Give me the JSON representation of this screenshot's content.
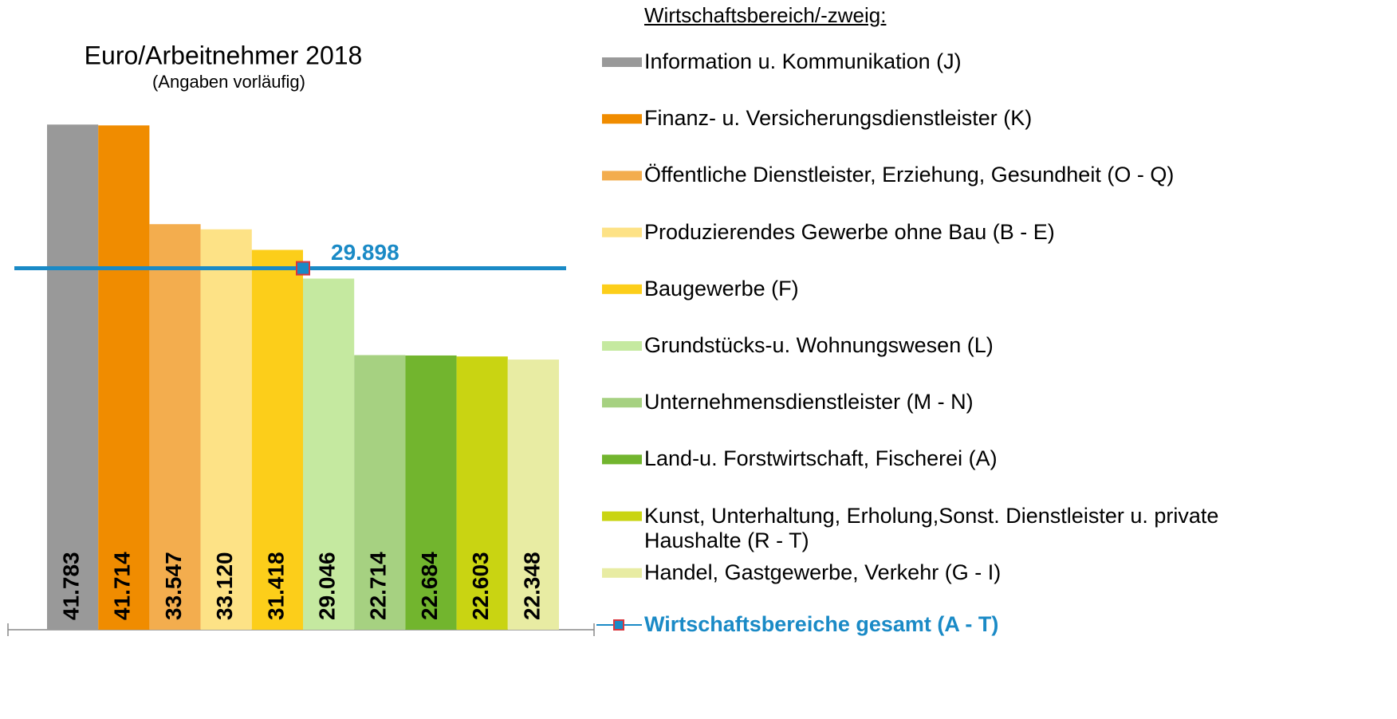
{
  "chart_data": {
    "type": "bar",
    "title": "Euro/Arbeitnehmer 2018",
    "subtitle": "(Angaben vorläufig)",
    "legend_title": "Wirtschaftsbereich/-zweig:",
    "legend_position": "right",
    "ylim": [
      0,
      42000
    ],
    "series": [
      {
        "name": "Information u. Kommunikation (J)",
        "color": "#999999",
        "values": [
          41783
        ],
        "value_labels": [
          "41.783"
        ]
      },
      {
        "name": "Finanz- u. Versicherungsdienstleister (K)",
        "color": "#f08c00",
        "values": [
          41714
        ],
        "value_labels": [
          "41.714"
        ]
      },
      {
        "name": "Öffentliche Dienstleister, Erziehung, Gesundheit (O - Q)",
        "color": "#f3ad4e",
        "values": [
          33547
        ],
        "value_labels": [
          "33.547"
        ]
      },
      {
        "name": "Produzierendes Gewerbe ohne Bau (B - E)",
        "color": "#fde286",
        "values": [
          33120
        ],
        "value_labels": [
          "33.120"
        ]
      },
      {
        "name": "Baugewerbe (F)",
        "color": "#fcce1a",
        "values": [
          31418
        ],
        "value_labels": [
          "31.418"
        ]
      },
      {
        "name": "Grundstücks-u. Wohnungswesen (L)",
        "color": "#c5e9a0",
        "values": [
          29046
        ],
        "value_labels": [
          "29.046"
        ]
      },
      {
        "name": "Unternehmensdienstleister (M - N)",
        "color": "#a6d181",
        "values": [
          22714
        ],
        "value_labels": [
          "22.714"
        ]
      },
      {
        "name": "Land-u. Forstwirtschaft, Fischerei (A)",
        "color": "#72b52e",
        "values": [
          22684
        ],
        "value_labels": [
          "22.684"
        ]
      },
      {
        "name": "Kunst, Unterhaltung, Erholung,Sonst. Dienstleister u. private Haushalte (R - T)",
        "color": "#c9d412",
        "values": [
          22603
        ],
        "value_labels": [
          "22.603"
        ]
      },
      {
        "name": "Handel, Gastgewerbe, Verkehr (G - I)",
        "color": "#e8eca3",
        "values": [
          22348
        ],
        "value_labels": [
          "22.348"
        ]
      }
    ],
    "reference_line": {
      "name": "Wirtschaftsbereiche gesamt (A - T)",
      "value": 29898,
      "label": "29.898",
      "color": "#1a8ac6",
      "marker_color": "#1a8ac6",
      "marker_edge": "#d9363e"
    }
  }
}
